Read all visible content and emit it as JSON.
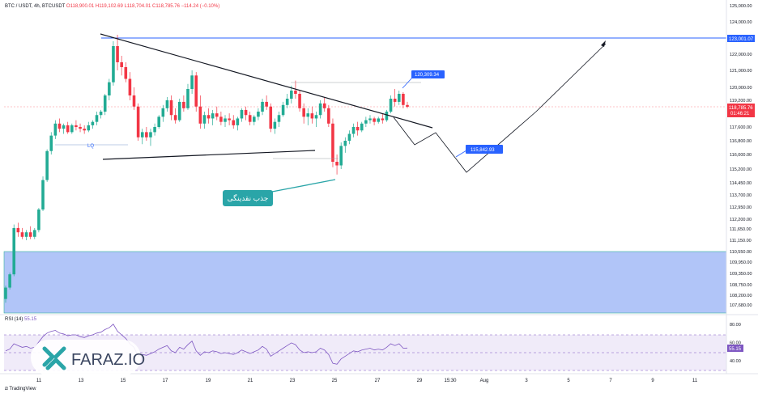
{
  "header": {
    "symbol": "BTC / USDT, 4h, BTCUSDT",
    "open": "O118,900.01",
    "high": "H119,102.69",
    "low": "L118,704.01",
    "close": "C118,785.76",
    "change": "−114.24 (−0.10%)"
  },
  "rsi_header": {
    "label": "RSI (14)",
    "value": "55.15"
  },
  "annotations": {
    "lq": "LQ",
    "liquidity_label": "جذب نقدینگی",
    "tag_top": "120,309.34",
    "tag_bottom": "115,842.93"
  },
  "price_axis": {
    "labels": [
      "125,000.00",
      "124,000.00",
      "123,001.07",
      "122,000.00",
      "121,000.00",
      "120,000.00",
      "119,200.00",
      "118,785.76",
      "117,600.00",
      "116,800.00",
      "116,000.00",
      "115,200.00",
      "114,450.00",
      "113,700.00",
      "112,950.00",
      "112,200.00",
      "111,650.00",
      "111,150.00",
      "110,550.00",
      "109,950.00",
      "109,350.00",
      "108,750.00",
      "108,200.00",
      "107,680.00"
    ],
    "last_price_label": "118,785.76",
    "countdown": "01:46:21",
    "resistance_label": "123,001.07"
  },
  "rsi_axis": {
    "labels": [
      "80.00",
      "60.00",
      "55.15",
      "40.00"
    ]
  },
  "time_axis": {
    "labels": [
      "11",
      "13",
      "15",
      "17",
      "19",
      "21",
      "23",
      "25",
      "27",
      "29",
      "15:30",
      "Aug",
      "3",
      "5",
      "7",
      "9",
      "11"
    ]
  },
  "branding": {
    "faraz": "FARAZ.IO",
    "tradingview": "TradingView"
  },
  "colors": {
    "up": "#22ab94",
    "down": "#f23645",
    "zone": "#a9bff8",
    "resistance": "#2962ff",
    "rsi": "#7e57c2",
    "label": "#2962ff",
    "teal": "#2aa5a8"
  },
  "chart_data": {
    "type": "candlestick",
    "title": "BTC / USDT, 4h, BTCUSDT",
    "xlabel": "",
    "ylabel": "",
    "ylim": [
      107500,
      125000
    ],
    "resistance": 123001.07,
    "demand_zone": [
      107500,
      110550
    ],
    "last_price": 118785.76,
    "tags": [
      120309.34,
      115842.93
    ],
    "candles": [
      [
        108000,
        108700,
        107800,
        108600
      ],
      [
        108600,
        109400,
        108500,
        109300
      ],
      [
        109300,
        111900,
        109200,
        111700
      ],
      [
        111700,
        112000,
        111300,
        111500
      ],
      [
        111500,
        111700,
        111200,
        111300
      ],
      [
        111300,
        111600,
        111150,
        111500
      ],
      [
        111500,
        111800,
        111200,
        111300
      ],
      [
        111300,
        111700,
        111200,
        111600
      ],
      [
        111600,
        112900,
        111500,
        112800
      ],
      [
        112800,
        114800,
        112700,
        114600
      ],
      [
        114600,
        116300,
        114500,
        116200
      ],
      [
        116200,
        117300,
        116000,
        117100
      ],
      [
        117100,
        118000,
        116900,
        117800
      ],
      [
        117800,
        118100,
        117300,
        117500
      ],
      [
        117500,
        117800,
        117200,
        117700
      ],
      [
        117700,
        117900,
        117200,
        117300
      ],
      [
        117300,
        117800,
        117200,
        117700
      ],
      [
        117700,
        118000,
        117400,
        117600
      ],
      [
        117600,
        117800,
        117300,
        117500
      ],
      [
        117500,
        117700,
        117200,
        117400
      ],
      [
        117400,
        117900,
        117300,
        117700
      ],
      [
        117700,
        118000,
        117500,
        117900
      ],
      [
        117900,
        118500,
        117700,
        118300
      ],
      [
        118300,
        118600,
        118100,
        118500
      ],
      [
        118500,
        119600,
        118300,
        119500
      ],
      [
        119500,
        120500,
        119200,
        120300
      ],
      [
        120300,
        122800,
        120100,
        122500
      ],
      [
        122500,
        123200,
        121000,
        121500
      ],
      [
        121500,
        121900,
        120700,
        121200
      ],
      [
        121200,
        121500,
        120300,
        120500
      ],
      [
        120500,
        120900,
        119200,
        119500
      ],
      [
        119500,
        120000,
        118600,
        118800
      ],
      [
        118800,
        119000,
        116800,
        117000
      ],
      [
        117000,
        117500,
        116600,
        117300
      ],
      [
        117300,
        117600,
        116800,
        117000
      ],
      [
        117000,
        117500,
        116500,
        117300
      ],
      [
        117300,
        117800,
        117100,
        117600
      ],
      [
        117600,
        118300,
        117500,
        118200
      ],
      [
        118200,
        118900,
        117900,
        118700
      ],
      [
        118700,
        119400,
        118500,
        119200
      ],
      [
        119200,
        119500,
        118000,
        118300
      ],
      [
        118300,
        118700,
        117800,
        118000
      ],
      [
        118000,
        119300,
        117900,
        119100
      ],
      [
        119100,
        119500,
        118500,
        118700
      ],
      [
        118700,
        120200,
        118600,
        119900
      ],
      [
        119900,
        121000,
        119600,
        120700
      ],
      [
        120700,
        120900,
        118500,
        118800
      ],
      [
        118800,
        119500,
        117500,
        117800
      ],
      [
        117800,
        118500,
        117500,
        118300
      ],
      [
        118300,
        118700,
        117800,
        118100
      ],
      [
        118100,
        118600,
        117700,
        118400
      ],
      [
        118400,
        118800,
        118000,
        118200
      ],
      [
        118200,
        118500,
        117700,
        117900
      ],
      [
        117900,
        118300,
        117600,
        118100
      ],
      [
        118100,
        118400,
        117700,
        118000
      ],
      [
        118000,
        118300,
        117500,
        117700
      ],
      [
        117700,
        118200,
        117400,
        118100
      ],
      [
        118100,
        118700,
        117900,
        118600
      ],
      [
        118600,
        118800,
        118000,
        118300
      ],
      [
        118300,
        118500,
        117700,
        117900
      ],
      [
        117900,
        118300,
        117700,
        118200
      ],
      [
        118200,
        118700,
        118000,
        118500
      ],
      [
        118500,
        119300,
        118300,
        119100
      ],
      [
        119100,
        119500,
        118600,
        118800
      ],
      [
        118800,
        119000,
        117300,
        117500
      ],
      [
        117500,
        118100,
        117200,
        117900
      ],
      [
        117900,
        118500,
        117600,
        118300
      ],
      [
        118300,
        119100,
        118200,
        118900
      ],
      [
        118900,
        119600,
        118700,
        119300
      ],
      [
        119300,
        120100,
        119000,
        119800
      ],
      [
        119800,
        120400,
        119300,
        119600
      ],
      [
        119600,
        119800,
        118500,
        118700
      ],
      [
        118700,
        119000,
        117800,
        118200
      ],
      [
        118200,
        118700,
        117700,
        118400
      ],
      [
        118400,
        118800,
        117800,
        118100
      ],
      [
        118100,
        118500,
        117600,
        118300
      ],
      [
        118300,
        119200,
        118100,
        119000
      ],
      [
        119000,
        119400,
        118500,
        118700
      ],
      [
        118700,
        118900,
        117600,
        117800
      ],
      [
        117800,
        118100,
        115300,
        115600
      ],
      [
        115600,
        116000,
        114900,
        115400
      ],
      [
        115400,
        116700,
        115200,
        116500
      ],
      [
        116500,
        117000,
        116100,
        116800
      ],
      [
        116800,
        117400,
        116600,
        117200
      ],
      [
        117200,
        117800,
        117000,
        117600
      ],
      [
        117600,
        117900,
        117100,
        117400
      ],
      [
        117400,
        117900,
        117300,
        117800
      ],
      [
        117800,
        118200,
        117600,
        118000
      ],
      [
        118000,
        118300,
        117800,
        118100
      ],
      [
        118100,
        118200,
        117700,
        117900
      ],
      [
        117900,
        118200,
        117800,
        118100
      ],
      [
        118100,
        118400,
        117800,
        118000
      ],
      [
        118000,
        118600,
        117900,
        118500
      ],
      [
        118500,
        119500,
        118400,
        119300
      ],
      [
        119300,
        119900,
        118800,
        119100
      ],
      [
        119100,
        119800,
        118900,
        119600
      ],
      [
        119600,
        119700,
        118700,
        118900
      ],
      [
        118900,
        119100,
        118700,
        118786
      ]
    ],
    "rsi": {
      "name": "RSI (14)",
      "ylim": [
        30,
        90
      ],
      "levels": [
        70,
        50,
        30
      ],
      "values": [
        52,
        54,
        60,
        58,
        56,
        57,
        55,
        56,
        62,
        68,
        72,
        74,
        75,
        72,
        71,
        69,
        70,
        70,
        68,
        67,
        69,
        70,
        72,
        73,
        76,
        78,
        82,
        74,
        70,
        66,
        60,
        56,
        46,
        48,
        47,
        49,
        51,
        54,
        56,
        58,
        52,
        50,
        56,
        54,
        59,
        63,
        52,
        47,
        51,
        50,
        52,
        51,
        49,
        50,
        49,
        48,
        50,
        53,
        51,
        49,
        51,
        53,
        57,
        54,
        46,
        49,
        52,
        55,
        58,
        61,
        59,
        53,
        50,
        51,
        50,
        51,
        55,
        53,
        48,
        38,
        37,
        43,
        46,
        49,
        52,
        51,
        53,
        54,
        55,
        53,
        54,
        53,
        56,
        60,
        58,
        60,
        55,
        55.15
      ]
    },
    "x_ticks": [
      "11",
      "13",
      "15",
      "17",
      "19",
      "21",
      "23",
      "25",
      "27",
      "29",
      "15:30",
      "Aug",
      "3",
      "5",
      "7",
      "9",
      "11"
    ]
  }
}
